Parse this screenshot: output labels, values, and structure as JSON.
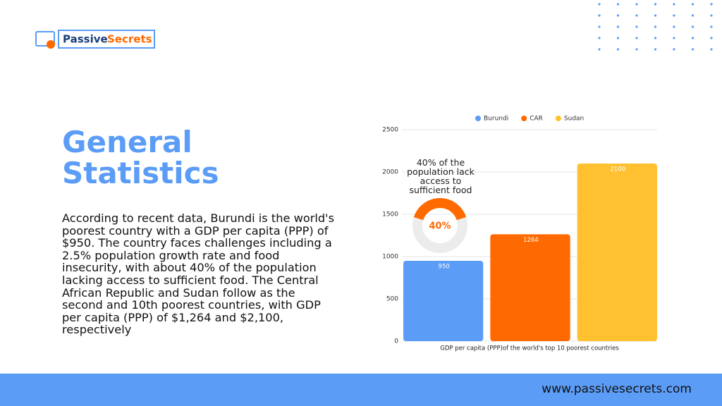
{
  "logo": {
    "word1": "Passive",
    "word2": "Secrets"
  },
  "heading": "General Statistics",
  "paragraph": "According to recent data, Burundi is the world's poorest country with a GDP per capita (PPP) of $950. The country faces challenges including a 2.5% population growth rate and food insecurity, with about 40% of the population lacking access to sufficient food. The Central African Republic and Sudan follow as the second and 10th poorest countries, with GDP per capita (PPP) of $1,264 and $2,100, respectively",
  "footer_url": "www.passivesecrets.com",
  "chart_data": {
    "type": "bar",
    "x_label": "GDP per capita (PPP)of the world's top 10 poorest countries",
    "categories": [
      null
    ],
    "series": [
      {
        "name": "Burundi",
        "color": "#5b9cf6",
        "values": [
          950
        ]
      },
      {
        "name": "CAR",
        "color": "#ff6a00",
        "values": [
          1264
        ]
      },
      {
        "name": "Sudan",
        "color": "#ffc130",
        "values": [
          2100
        ]
      }
    ],
    "ylim": [
      0,
      2500
    ],
    "yticks": [
      0,
      500,
      1000,
      1500,
      2000,
      2500
    ],
    "grid": true,
    "legend": "top"
  },
  "donut": {
    "caption": "40% of the population lack access to sufficient food",
    "value": 40,
    "value_label": "40%",
    "range": [
      0,
      100
    ],
    "color": "#ff6a00"
  }
}
